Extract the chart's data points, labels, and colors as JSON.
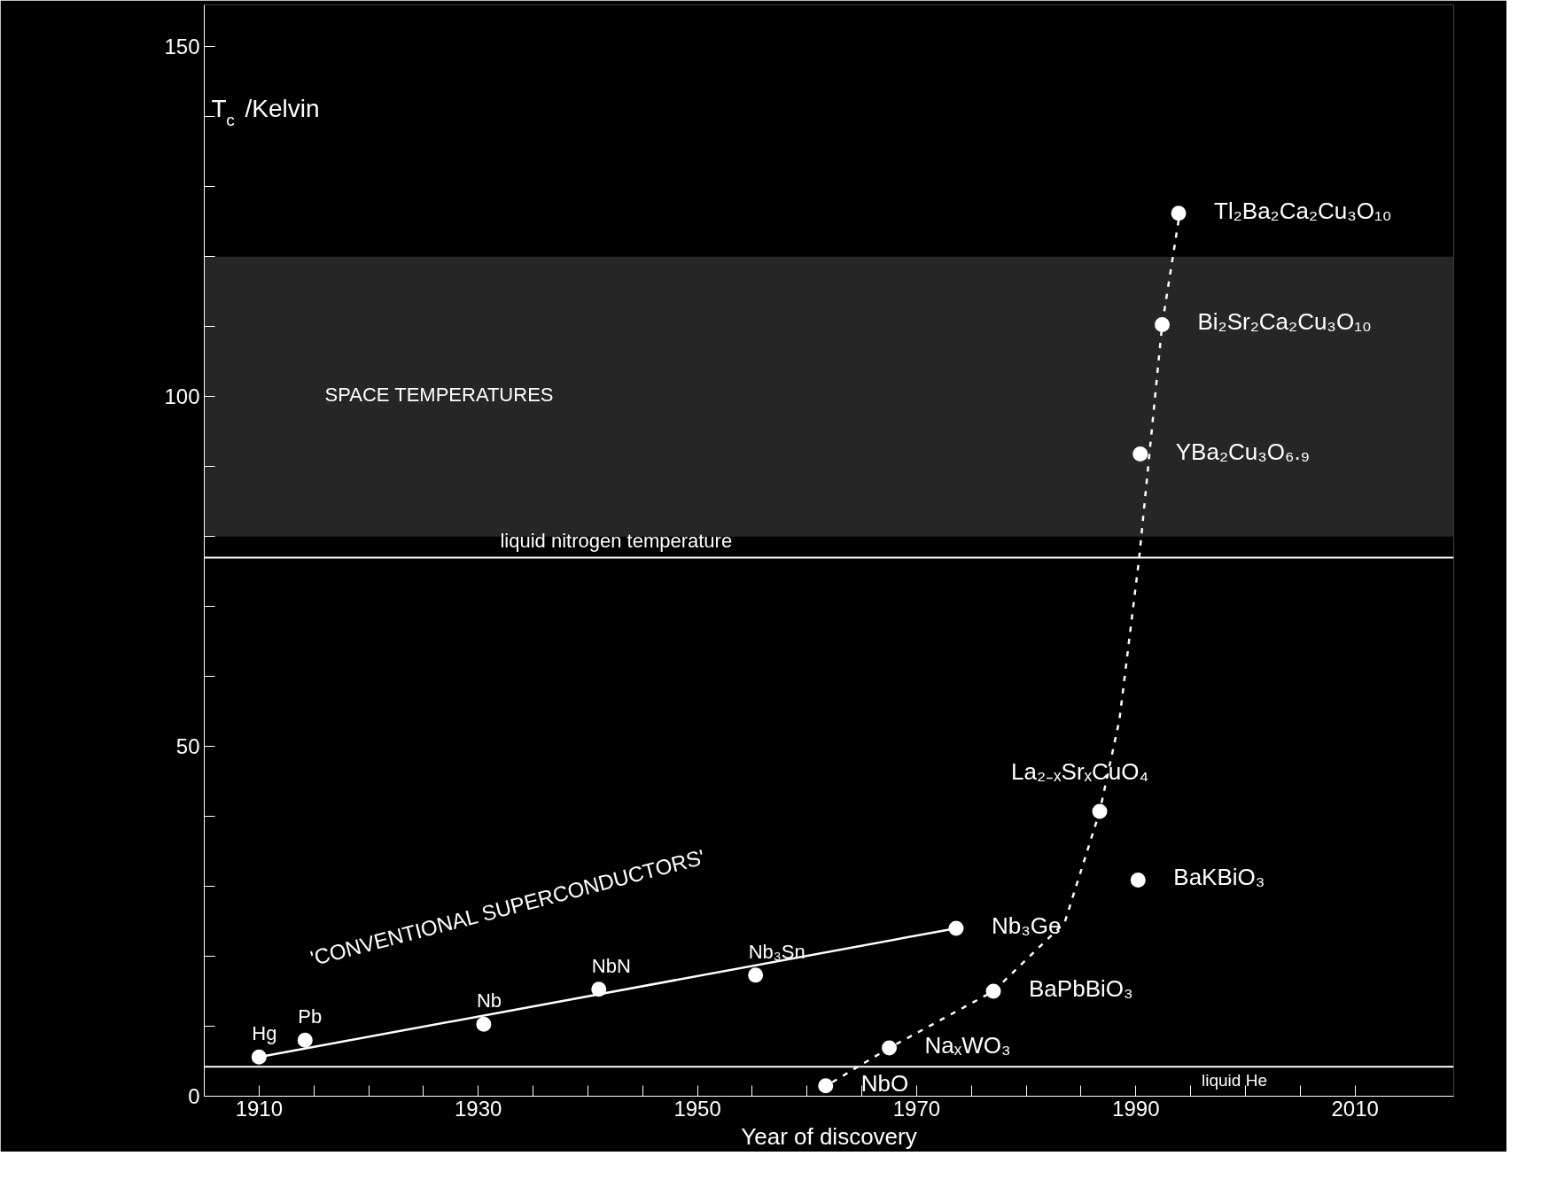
{
  "chart_data": {
    "type": "scatter",
    "xlabel": "Year of discovery",
    "ylabel": "T$_{c}$ /Kelvin",
    "xlim": [
      1905,
      2019
    ],
    "ylim": [
      0,
      156
    ],
    "xticks": [
      1910,
      {
        "value": 1915,
        "label": null
      },
      {
        "value": 1920,
        "label": null
      },
      {
        "value": 1925,
        "label": null
      },
      1930,
      {
        "value": 1935,
        "label": null
      },
      {
        "value": 1940,
        "label": null
      },
      {
        "value": 1945,
        "label": null
      },
      1950,
      {
        "value": 1955,
        "label": null
      },
      {
        "value": 1960,
        "label": null
      },
      {
        "value": 1965,
        "label": null
      },
      1970,
      {
        "value": 1975,
        "label": null
      },
      {
        "value": 1980,
        "label": null
      },
      {
        "value": 1985,
        "label": null
      },
      1990,
      {
        "value": 1995,
        "label": null
      },
      {
        "value": 2000,
        "label": null
      },
      {
        "value": 2005,
        "label": null
      },
      2010
    ],
    "yticks": [
      0,
      {
        "value": 10,
        "label": null
      },
      {
        "value": 20,
        "label": null
      },
      {
        "value": 30,
        "label": null
      },
      {
        "value": 40,
        "label": null
      },
      50,
      {
        "value": 60,
        "label": null
      },
      {
        "value": 70,
        "label": null
      },
      {
        "value": 80,
        "label": null
      },
      {
        "value": 90,
        "label": null
      },
      100,
      {
        "value": 110,
        "label": null
      },
      {
        "value": 120,
        "label": null
      },
      {
        "value": 130,
        "label": null
      },
      {
        "value": 140,
        "label": null
      },
      150
    ],
    "grid": false,
    "series": [
      {
        "marker": "circle",
        "color": "#ffffff",
        "x": [
          1910,
          1914.2,
          1930.5,
          1941,
          1955.3,
          1973.6
        ],
        "values": [
          5.6,
          8.0,
          10.3,
          15.3,
          17.3,
          24.0
        ]
      },
      {
        "marker": "circle",
        "color": "#ffffff",
        "x": [
          1961.7,
          1967.5,
          1977.0,
          1990.2,
          1986.7,
          1990.4,
          1992.4,
          1993.9
        ],
        "values": [
          1.5,
          6.9,
          15.0,
          30.9,
          40.7,
          91.8,
          110.3,
          126.2
        ]
      },
      {
        "type": "line",
        "color": "#ffffff",
        "line_style": "solid",
        "x": [
          1910,
          1973.6
        ],
        "values": [
          5.6,
          24.0
        ]
      },
      {
        "type": "line",
        "color": "#ffffff",
        "line_style": "dashed",
        "x": [
          1962.3,
          1967.5,
          1977.0,
          1983.5,
          1986.7,
          1988.5,
          1990.3,
          1992.4,
          1994.0
        ],
        "values": [
          2.0,
          6.9,
          15.0,
          24.8,
          40.7,
          53.8,
          76.9,
          110.3,
          126.2
        ]
      }
    ],
    "ref_lines": [
      {
        "axis": "y",
        "value": 77,
        "label": "liquid nitrogen temperature",
        "color": "#ffffff"
      },
      {
        "axis": "y",
        "value": 4.2,
        "label": "liquid He",
        "color": "#ffffff"
      }
    ],
    "bands": [
      {
        "axis": "y",
        "from": 80,
        "to": 120,
        "label": "SPACE TEMPERATURES",
        "color": "#262626"
      }
    ],
    "annotations": [
      {
        "text": "Hg",
        "x": 1910,
        "y": 5.6
      },
      {
        "text": "Pb",
        "x": 1914.2,
        "y": 8.0
      },
      {
        "text": "Nb",
        "x": 1930.5,
        "y": 10.3
      },
      {
        "text": "NbN",
        "x": 1941,
        "y": 15.3
      },
      {
        "text": "Nb₃Sn",
        "x": 1955.3,
        "y": 17.3
      },
      {
        "text": "Nb₃Ge",
        "x": 1973.6,
        "y": 24.0
      },
      {
        "text": "NbO",
        "x": 1961.7,
        "y": 1.5
      },
      {
        "text": "NaₓWO₃",
        "x": 1967.5,
        "y": 6.9
      },
      {
        "text": "BaPbBiO₃",
        "x": 1977.0,
        "y": 15.0
      },
      {
        "text": "BaKBiO₃",
        "x": 1990.2,
        "y": 30.9
      },
      {
        "text": "La₂₋ₓSrₓCuO₄",
        "x": 1986.7,
        "y": 40.7
      },
      {
        "text": "YBa₂Cu₃O₆.₉",
        "x": 1990.4,
        "y": 91.8
      },
      {
        "text": "Bi₂Sr₂Ca₂Cu₃O₁₀",
        "x": 1992.4,
        "y": 110.3
      },
      {
        "text": "Tl₂Ba₂Ca₂Cu₃O₁₀",
        "x": 1993.9,
        "y": 126.2
      },
      "'CONVENTIONAL SUPERCONDUCTORS'"
    ]
  }
}
